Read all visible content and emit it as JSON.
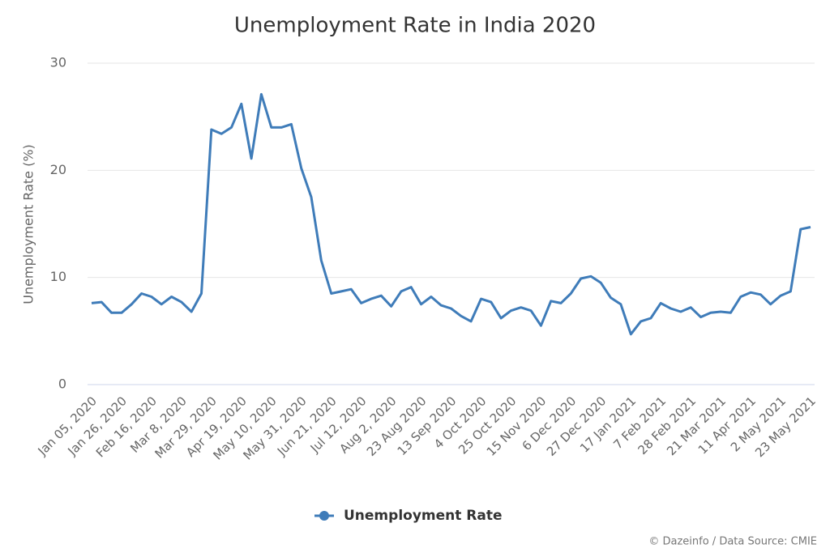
{
  "chart_data": {
    "type": "line",
    "title": "Unemployment Rate in India 2020",
    "y_label": "Unemployment Rate (%)",
    "source": "© Dazeinfo / Data Source: CMIE",
    "categories": [
      "Jan 05, 2020",
      null,
      null,
      "Jan 26, 2020",
      null,
      null,
      "Feb 16, 2020",
      null,
      null,
      "Mar 8, 2020",
      null,
      null,
      "Mar 29, 2020",
      null,
      null,
      "Apr 19, 2020",
      null,
      null,
      "May 10, 2020",
      null,
      null,
      "May 31, 2020",
      null,
      null,
      "Jun 21, 2020",
      null,
      null,
      "Jul 12, 2020",
      null,
      null,
      "Aug 2, 2020",
      null,
      null,
      "23 Aug 2020",
      null,
      null,
      "13 Sep 2020",
      null,
      null,
      "4 Oct 2020",
      null,
      null,
      "25 Oct 2020",
      null,
      null,
      "15 Nov 2020",
      null,
      null,
      "6 Dec 2020",
      null,
      null,
      "27 Dec 2020",
      null,
      null,
      "17 Jan 2021",
      null,
      null,
      "7 Feb 2021",
      null,
      null,
      "28 Feb 2021",
      null,
      null,
      "21 Mar 2021",
      null,
      null,
      "11 Apr 2021",
      null,
      null,
      "2 May 2021",
      null,
      null,
      "23 May 2021"
    ],
    "series": [
      {
        "name": "Unemployment Rate",
        "color": "#3f7cb9",
        "values": [
          7.6,
          7.7,
          6.7,
          6.7,
          7.5,
          8.5,
          8.2,
          7.5,
          8.2,
          7.7,
          6.8,
          8.5,
          23.8,
          23.4,
          24.0,
          26.2,
          21.1,
          27.1,
          24.0,
          24.0,
          24.3,
          20.2,
          17.5,
          11.6,
          8.5,
          8.7,
          8.9,
          7.6,
          8.0,
          8.3,
          7.3,
          8.7,
          9.1,
          7.5,
          8.2,
          7.4,
          7.1,
          6.4,
          5.9,
          8.0,
          7.7,
          6.2,
          6.9,
          7.2,
          6.9,
          5.5,
          7.8,
          7.6,
          8.5,
          9.9,
          10.1,
          9.5,
          8.1,
          7.5,
          4.7,
          5.9,
          6.2,
          7.6,
          7.1,
          6.8,
          7.2,
          6.3,
          6.7,
          6.8,
          6.7,
          8.2,
          8.6,
          8.4,
          7.5,
          8.3,
          8.7,
          14.5,
          14.7
        ]
      }
    ],
    "ylim": [
      0,
      30
    ],
    "yticks": [
      0,
      10,
      20,
      30
    ],
    "grid": true,
    "legend": "bottom"
  }
}
